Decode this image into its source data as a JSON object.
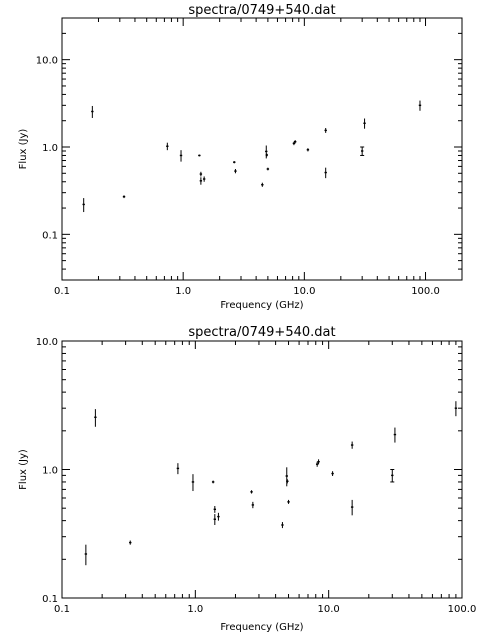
{
  "chart_data": [
    {
      "type": "scatter",
      "title": "spectra/0749+540.dat",
      "xlabel": "Frequency (GHz)",
      "ylabel": "Flux (Jy)",
      "xscale": "log",
      "yscale": "log",
      "xlim": [
        0.1,
        200
      ],
      "ylim": [
        0.03,
        30
      ],
      "x_tick_labels": [
        "0.1",
        "1.0",
        "10.0",
        "100.0"
      ],
      "y_tick_labels": [
        "0.1",
        "1.0",
        "10.0"
      ],
      "series": [
        {
          "points": [
            {
              "x": 0.151,
              "y": 0.22,
              "err": 0.04
            },
            {
              "x": 0.178,
              "y": 2.55,
              "err": 0.4
            },
            {
              "x": 0.325,
              "y": 0.27,
              "err": 0.01
            },
            {
              "x": 0.74,
              "y": 1.02,
              "err": 0.1
            },
            {
              "x": 0.96,
              "y": 0.8,
              "err": 0.12
            },
            {
              "x": 1.36,
              "y": 0.8,
              "err": 0.02
            },
            {
              "x": 1.4,
              "y": 0.49,
              "err": 0.03
            },
            {
              "x": 1.4,
              "y": 0.41,
              "err": 0.04
            },
            {
              "x": 1.49,
              "y": 0.43,
              "err": 0.03
            },
            {
              "x": 2.64,
              "y": 0.67,
              "err": 0.02
            },
            {
              "x": 2.7,
              "y": 0.53,
              "err": 0.03
            },
            {
              "x": 4.5,
              "y": 0.37,
              "err": 0.02
            },
            {
              "x": 4.85,
              "y": 0.89,
              "err": 0.15
            },
            {
              "x": 4.9,
              "y": 0.81,
              "err": 0.03
            },
            {
              "x": 5.0,
              "y": 0.56,
              "err": 0.02
            },
            {
              "x": 8.2,
              "y": 1.1,
              "err": 0.05
            },
            {
              "x": 8.4,
              "y": 1.15,
              "err": 0.05
            },
            {
              "x": 10.7,
              "y": 0.93,
              "err": 0.04
            },
            {
              "x": 15.0,
              "y": 1.55,
              "err": 0.1
            },
            {
              "x": 15.0,
              "y": 0.51,
              "err": 0.07
            },
            {
              "x": 30.0,
              "y": 0.9,
              "err": 0.1
            },
            {
              "x": 31.4,
              "y": 1.87,
              "err": 0.25
            },
            {
              "x": 90.0,
              "y": 3.0,
              "err": 0.4
            }
          ]
        }
      ]
    },
    {
      "type": "scatter",
      "title": "spectra/0749+540.dat",
      "xlabel": "Frequency (GHz)",
      "ylabel": "Flux (Jy)",
      "xscale": "log",
      "yscale": "log",
      "xlim": [
        0.1,
        100
      ],
      "ylim": [
        0.1,
        10
      ],
      "x_tick_labels": [
        "0.1",
        "1.0",
        "10.0",
        "100.0"
      ],
      "y_tick_labels": [
        "0.1",
        "1.0",
        "10.0"
      ],
      "series": [
        {
          "points": [
            {
              "x": 0.151,
              "y": 0.22,
              "err": 0.04
            },
            {
              "x": 0.178,
              "y": 2.55,
              "err": 0.4
            },
            {
              "x": 0.325,
              "y": 0.27,
              "err": 0.01
            },
            {
              "x": 0.74,
              "y": 1.02,
              "err": 0.1
            },
            {
              "x": 0.96,
              "y": 0.8,
              "err": 0.12
            },
            {
              "x": 1.36,
              "y": 0.8,
              "err": 0.02
            },
            {
              "x": 1.4,
              "y": 0.49,
              "err": 0.03
            },
            {
              "x": 1.4,
              "y": 0.41,
              "err": 0.04
            },
            {
              "x": 1.49,
              "y": 0.43,
              "err": 0.03
            },
            {
              "x": 2.64,
              "y": 0.67,
              "err": 0.02
            },
            {
              "x": 2.7,
              "y": 0.53,
              "err": 0.03
            },
            {
              "x": 4.5,
              "y": 0.37,
              "err": 0.02
            },
            {
              "x": 4.85,
              "y": 0.89,
              "err": 0.15
            },
            {
              "x": 4.9,
              "y": 0.81,
              "err": 0.03
            },
            {
              "x": 5.0,
              "y": 0.56,
              "err": 0.02
            },
            {
              "x": 8.2,
              "y": 1.1,
              "err": 0.05
            },
            {
              "x": 8.4,
              "y": 1.15,
              "err": 0.05
            },
            {
              "x": 10.7,
              "y": 0.93,
              "err": 0.04
            },
            {
              "x": 15.0,
              "y": 1.55,
              "err": 0.1
            },
            {
              "x": 15.0,
              "y": 0.51,
              "err": 0.07
            },
            {
              "x": 30.0,
              "y": 0.9,
              "err": 0.1
            },
            {
              "x": 31.4,
              "y": 1.87,
              "err": 0.25
            },
            {
              "x": 90.0,
              "y": 3.0,
              "err": 0.4
            }
          ]
        }
      ]
    }
  ]
}
